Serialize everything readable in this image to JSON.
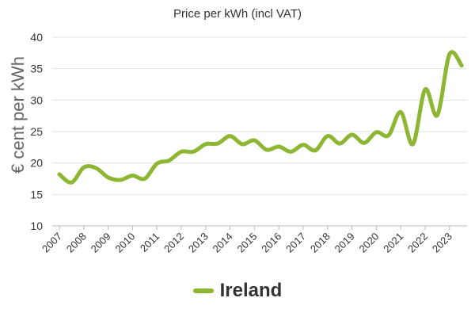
{
  "chart_data": {
    "type": "line",
    "title": "Price per kWh (incl VAT)",
    "xlabel": "",
    "ylabel": "€ cent per kWh",
    "ylim": [
      10,
      40
    ],
    "yticks": [
      "10",
      "15",
      "20",
      "25",
      "30",
      "35",
      "40"
    ],
    "xticks": [
      "2007",
      "2008",
      "2009",
      "2010",
      "2011",
      "2012",
      "2013",
      "2014",
      "2015",
      "2016",
      "2017",
      "2018",
      "2019",
      "2020",
      "2021",
      "2022",
      "2023"
    ],
    "grid": true,
    "legend_position": "bottom",
    "series": [
      {
        "name": "Ireland",
        "color": "#8db632",
        "x": [
          2007.0,
          2007.5,
          2008.0,
          2008.5,
          2009.0,
          2009.5,
          2010.0,
          2010.5,
          2011.0,
          2011.5,
          2012.0,
          2012.5,
          2013.0,
          2013.5,
          2014.0,
          2014.5,
          2015.0,
          2015.5,
          2016.0,
          2016.5,
          2017.0,
          2017.5,
          2018.0,
          2018.5,
          2019.0,
          2019.5,
          2020.0,
          2020.5,
          2021.0,
          2021.5,
          2022.0,
          2022.5,
          2023.0,
          2023.5
        ],
        "values": [
          18.2,
          16.9,
          19.3,
          19.2,
          17.7,
          17.3,
          18.0,
          17.5,
          19.9,
          20.4,
          21.8,
          21.8,
          23.0,
          23.1,
          24.3,
          23.0,
          23.6,
          22.1,
          22.6,
          21.8,
          22.9,
          22.0,
          24.3,
          23.1,
          24.5,
          23.2,
          24.9,
          24.4,
          28.1,
          23.0,
          31.7,
          27.6,
          37.3,
          35.5
        ]
      }
    ]
  },
  "legend": {
    "label": "Ireland",
    "color": "#8db632"
  }
}
